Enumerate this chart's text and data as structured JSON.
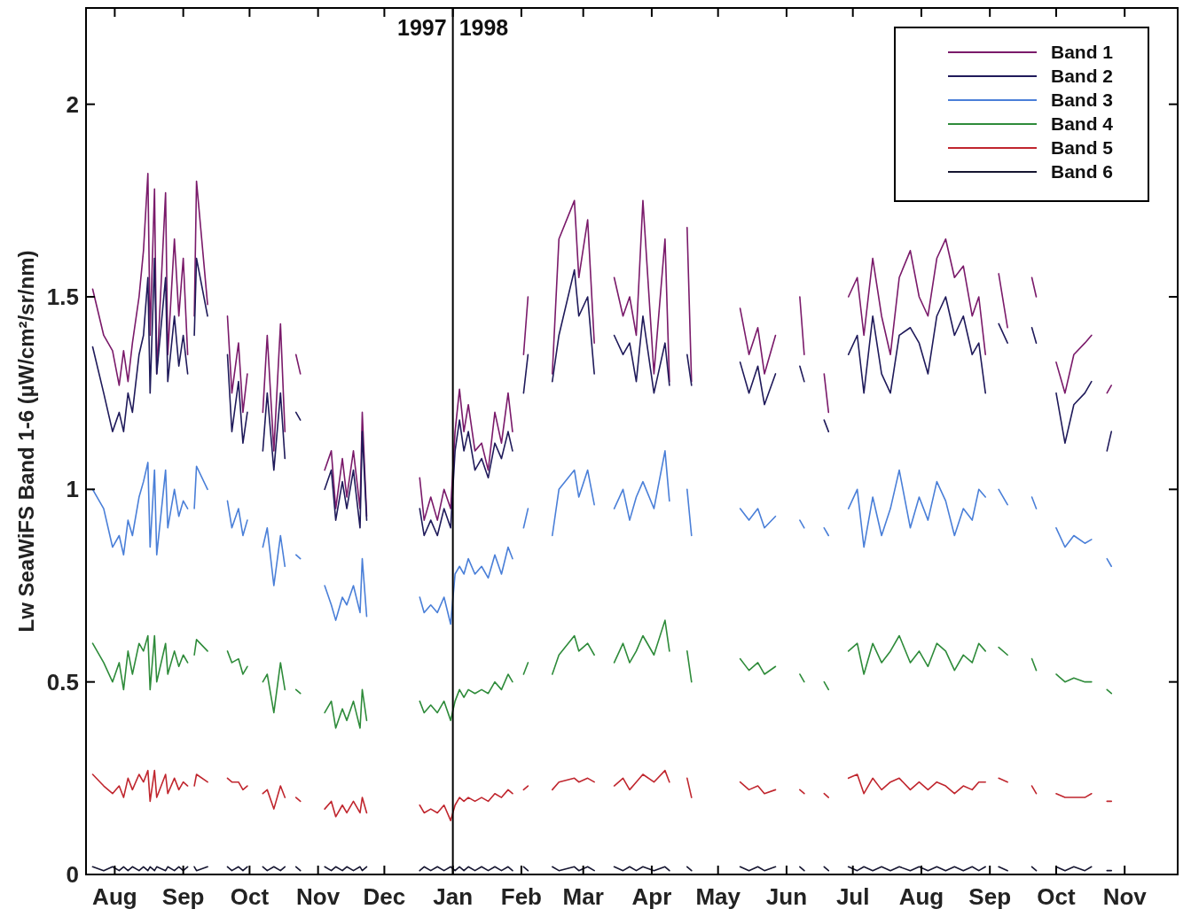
{
  "chart_data": {
    "type": "line",
    "ylabel": "Lw SeaWiFS Band 1-6 (µW/cm²/sr/nm)",
    "x": [
      "1997-07-22",
      "1997-07-27",
      "1997-07-31",
      "1997-08-03",
      "1997-08-05",
      "1997-08-07",
      "1997-08-09",
      "1997-08-12",
      "1997-08-14",
      "1997-08-16",
      "1997-08-17",
      "1997-08-19",
      "1997-08-20",
      "1997-08-24",
      "1997-08-25",
      "1997-08-28",
      "1997-08-30",
      "1997-09-01",
      "1997-09-03",
      "1997-09-05",
      "1997-09-06",
      "1997-09-07",
      "1997-09-12",
      "1997-09-16",
      "1997-09-21",
      "1997-09-23",
      "1997-09-26",
      "1997-09-28",
      "1997-09-30",
      "1997-10-03",
      "1997-10-07",
      "1997-10-09",
      "1997-10-12",
      "1997-10-15",
      "1997-10-17",
      "1997-10-20",
      "1997-10-22",
      "1997-10-24",
      "1997-10-28",
      "1997-11-04",
      "1997-11-07",
      "1997-11-09",
      "1997-11-12",
      "1997-11-14",
      "1997-11-17",
      "1997-11-20",
      "1997-11-21",
      "1997-11-23",
      "1997-12-05",
      "1997-12-17",
      "1997-12-19",
      "1997-12-22",
      "1997-12-25",
      "1997-12-28",
      "1997-12-31",
      "1998-01-02",
      "1998-01-04",
      "1998-01-06",
      "1998-01-08",
      "1998-01-11",
      "1998-01-14",
      "1998-01-17",
      "1998-01-20",
      "1998-01-23",
      "1998-01-26",
      "1998-01-28",
      "1998-01-30",
      "1998-02-02",
      "1998-02-04",
      "1998-02-10",
      "1998-02-15",
      "1998-02-18",
      "1998-02-25",
      "1998-02-27",
      "1998-03-03",
      "1998-03-06",
      "1998-03-10",
      "1998-03-15",
      "1998-03-19",
      "1998-03-22",
      "1998-03-25",
      "1998-03-28",
      "1998-04-02",
      "1998-04-07",
      "1998-04-09",
      "1998-04-13",
      "1998-04-17",
      "1998-04-19",
      "1998-05-01",
      "1998-05-11",
      "1998-05-15",
      "1998-05-19",
      "1998-05-22",
      "1998-05-27",
      "1998-06-02",
      "1998-06-07",
      "1998-06-09",
      "1998-06-13",
      "1998-06-18",
      "1998-06-20",
      "1998-06-25",
      "1998-06-29",
      "1998-07-03",
      "1998-07-06",
      "1998-07-10",
      "1998-07-14",
      "1998-07-18",
      "1998-07-22",
      "1998-07-27",
      "1998-07-31",
      "1998-08-04",
      "1998-08-08",
      "1998-08-12",
      "1998-08-16",
      "1998-08-20",
      "1998-08-24",
      "1998-08-27",
      "1998-08-30",
      "1998-09-02",
      "1998-09-05",
      "1998-09-09",
      "1998-09-14",
      "1998-09-20",
      "1998-09-22",
      "1998-09-26",
      "1998-10-01",
      "1998-10-05",
      "1998-10-09",
      "1998-10-14",
      "1998-10-17",
      "1998-10-20",
      "1998-10-24",
      "1998-10-26"
    ],
    "series": [
      {
        "name": "Band 1",
        "color": "#7a1a6a",
        "values": [
          1.52,
          1.4,
          1.36,
          1.27,
          1.36,
          1.28,
          1.38,
          1.5,
          1.62,
          1.82,
          1.4,
          1.78,
          1.3,
          1.77,
          1.35,
          1.65,
          1.45,
          1.6,
          1.35,
          null,
          1.45,
          1.8,
          1.48,
          null,
          1.45,
          1.25,
          1.38,
          1.2,
          1.3,
          null,
          1.2,
          1.4,
          1.1,
          1.43,
          1.15,
          null,
          1.35,
          1.3,
          null,
          1.05,
          1.1,
          0.95,
          1.08,
          0.98,
          1.1,
          0.95,
          1.2,
          0.93,
          null,
          1.03,
          0.92,
          0.98,
          0.92,
          1.0,
          0.95,
          1.15,
          1.26,
          1.15,
          1.22,
          1.1,
          1.12,
          1.05,
          1.2,
          1.12,
          1.25,
          1.15,
          null,
          1.35,
          1.5,
          null,
          1.3,
          1.65,
          1.75,
          1.55,
          1.7,
          1.38,
          null,
          1.55,
          1.45,
          1.5,
          1.4,
          1.75,
          1.3,
          1.65,
          1.28,
          null,
          1.68,
          1.28,
          null,
          1.47,
          1.35,
          1.42,
          1.3,
          1.4,
          null,
          1.5,
          1.35,
          null,
          1.3,
          1.2,
          null,
          1.5,
          1.55,
          1.4,
          1.6,
          1.45,
          1.35,
          1.55,
          1.62,
          1.5,
          1.45,
          1.6,
          1.65,
          1.55,
          1.58,
          1.45,
          1.5,
          1.35,
          null,
          1.56,
          1.42,
          null,
          1.55,
          1.5,
          null,
          1.33,
          1.25,
          1.35,
          1.38,
          1.4,
          null,
          1.25,
          1.27
        ]
      },
      {
        "name": "Band 2",
        "color": "#1f1a5a",
        "values": [
          1.37,
          1.25,
          1.15,
          1.2,
          1.15,
          1.25,
          1.2,
          1.35,
          1.4,
          1.55,
          1.25,
          1.6,
          1.3,
          1.55,
          1.28,
          1.45,
          1.32,
          1.4,
          1.3,
          null,
          1.4,
          1.6,
          1.45,
          null,
          1.35,
          1.15,
          1.28,
          1.12,
          1.2,
          null,
          1.1,
          1.25,
          1.05,
          1.25,
          1.08,
          null,
          1.2,
          1.18,
          null,
          1.0,
          1.05,
          0.92,
          1.02,
          0.95,
          1.05,
          0.9,
          1.15,
          0.92,
          null,
          0.95,
          0.88,
          0.92,
          0.88,
          0.95,
          0.9,
          1.1,
          1.18,
          1.1,
          1.15,
          1.05,
          1.08,
          1.03,
          1.12,
          1.08,
          1.15,
          1.1,
          null,
          1.25,
          1.35,
          null,
          1.28,
          1.4,
          1.57,
          1.45,
          1.5,
          1.3,
          null,
          1.4,
          1.35,
          1.38,
          1.28,
          1.45,
          1.25,
          1.38,
          1.27,
          null,
          1.35,
          1.27,
          null,
          1.33,
          1.25,
          1.32,
          1.22,
          1.3,
          null,
          1.32,
          1.28,
          null,
          1.18,
          1.15,
          null,
          1.35,
          1.4,
          1.25,
          1.45,
          1.3,
          1.25,
          1.4,
          1.42,
          1.38,
          1.3,
          1.45,
          1.5,
          1.4,
          1.45,
          1.35,
          1.38,
          1.25,
          null,
          1.43,
          1.38,
          null,
          1.42,
          1.38,
          null,
          1.25,
          1.12,
          1.22,
          1.25,
          1.28,
          null,
          1.1,
          1.15
        ]
      },
      {
        "name": "Band 3",
        "color": "#4a7fd8",
        "values": [
          1.0,
          0.95,
          0.85,
          0.88,
          0.83,
          0.92,
          0.88,
          0.98,
          1.02,
          1.07,
          0.85,
          1.05,
          0.83,
          1.05,
          0.9,
          1.0,
          0.93,
          0.97,
          0.95,
          null,
          0.95,
          1.06,
          1.0,
          null,
          0.97,
          0.9,
          0.95,
          0.88,
          0.92,
          null,
          0.85,
          0.9,
          0.75,
          0.88,
          0.8,
          null,
          0.83,
          0.82,
          null,
          0.75,
          0.7,
          0.66,
          0.72,
          0.7,
          0.75,
          0.68,
          0.82,
          0.67,
          null,
          0.72,
          0.68,
          0.7,
          0.68,
          0.72,
          0.65,
          0.78,
          0.8,
          0.78,
          0.82,
          0.78,
          0.8,
          0.77,
          0.83,
          0.78,
          0.85,
          0.82,
          null,
          0.9,
          0.95,
          null,
          0.88,
          1.0,
          1.05,
          0.98,
          1.05,
          0.96,
          null,
          0.95,
          1.0,
          0.92,
          0.98,
          1.02,
          0.95,
          1.1,
          0.97,
          null,
          1.0,
          0.88,
          null,
          0.95,
          0.92,
          0.95,
          0.9,
          0.93,
          null,
          0.92,
          0.9,
          null,
          0.9,
          0.88,
          null,
          0.95,
          1.0,
          0.85,
          0.98,
          0.88,
          0.95,
          1.05,
          0.9,
          0.98,
          0.92,
          1.02,
          0.97,
          0.88,
          0.95,
          0.92,
          1.0,
          0.98,
          null,
          1.0,
          0.96,
          null,
          0.98,
          0.95,
          null,
          0.9,
          0.85,
          0.88,
          0.86,
          0.87,
          null,
          0.82,
          0.8
        ]
      },
      {
        "name": "Band 4",
        "color": "#2e8b3a",
        "values": [
          0.6,
          0.55,
          0.5,
          0.55,
          0.48,
          0.58,
          0.52,
          0.6,
          0.58,
          0.62,
          0.48,
          0.62,
          0.5,
          0.6,
          0.52,
          0.58,
          0.54,
          0.57,
          0.55,
          null,
          0.57,
          0.61,
          0.58,
          null,
          0.58,
          0.55,
          0.56,
          0.52,
          0.54,
          null,
          0.5,
          0.52,
          0.42,
          0.55,
          0.48,
          null,
          0.48,
          0.47,
          null,
          0.42,
          0.45,
          0.38,
          0.43,
          0.4,
          0.45,
          0.38,
          0.48,
          0.4,
          null,
          0.45,
          0.42,
          0.44,
          0.42,
          0.45,
          0.4,
          0.45,
          0.48,
          0.46,
          0.48,
          0.47,
          0.48,
          0.47,
          0.5,
          0.48,
          0.52,
          0.5,
          null,
          0.52,
          0.55,
          null,
          0.52,
          0.57,
          0.62,
          0.58,
          0.6,
          0.57,
          null,
          0.55,
          0.6,
          0.55,
          0.58,
          0.62,
          0.57,
          0.66,
          0.58,
          null,
          0.58,
          0.5,
          null,
          0.56,
          0.53,
          0.55,
          0.52,
          0.54,
          null,
          0.52,
          0.5,
          null,
          0.5,
          0.48,
          null,
          0.58,
          0.6,
          0.52,
          0.6,
          0.55,
          0.58,
          0.62,
          0.55,
          0.58,
          0.54,
          0.6,
          0.58,
          0.53,
          0.57,
          0.55,
          0.6,
          0.58,
          null,
          0.59,
          0.57,
          null,
          0.56,
          0.53,
          null,
          0.52,
          0.5,
          0.51,
          0.5,
          0.5,
          null,
          0.48,
          0.47
        ]
      },
      {
        "name": "Band 5",
        "color": "#c0262e",
        "values": [
          0.26,
          0.23,
          0.21,
          0.23,
          0.2,
          0.25,
          0.22,
          0.26,
          0.24,
          0.27,
          0.19,
          0.27,
          0.2,
          0.26,
          0.21,
          0.25,
          0.22,
          0.24,
          0.23,
          null,
          0.23,
          0.26,
          0.24,
          null,
          0.25,
          0.24,
          0.24,
          0.22,
          0.23,
          null,
          0.21,
          0.22,
          0.17,
          0.23,
          0.2,
          null,
          0.2,
          0.19,
          null,
          0.17,
          0.19,
          0.15,
          0.18,
          0.16,
          0.19,
          0.16,
          0.2,
          0.16,
          null,
          0.18,
          0.16,
          0.17,
          0.16,
          0.18,
          0.14,
          0.18,
          0.2,
          0.19,
          0.2,
          0.19,
          0.2,
          0.19,
          0.21,
          0.2,
          0.22,
          0.21,
          null,
          0.22,
          0.23,
          null,
          0.22,
          0.24,
          0.25,
          0.24,
          0.25,
          0.24,
          null,
          0.23,
          0.25,
          0.22,
          0.24,
          0.26,
          0.24,
          0.27,
          0.24,
          null,
          0.25,
          0.2,
          null,
          0.24,
          0.22,
          0.23,
          0.21,
          0.22,
          null,
          0.22,
          0.21,
          null,
          0.21,
          0.2,
          null,
          0.25,
          0.26,
          0.21,
          0.25,
          0.22,
          0.24,
          0.25,
          0.22,
          0.24,
          0.22,
          0.24,
          0.23,
          0.21,
          0.23,
          0.22,
          0.24,
          0.24,
          null,
          0.25,
          0.24,
          null,
          0.23,
          0.21,
          null,
          0.21,
          0.2,
          0.2,
          0.2,
          0.21,
          null,
          0.19,
          0.19
        ]
      },
      {
        "name": "Band 6",
        "color": "#151530",
        "values": [
          0.02,
          0.01,
          0.02,
          0.01,
          0.02,
          0.01,
          0.02,
          0.01,
          0.02,
          0.01,
          0.02,
          0.01,
          0.02,
          0.01,
          0.02,
          0.01,
          0.02,
          0.01,
          0.02,
          null,
          0.02,
          0.01,
          0.02,
          null,
          0.02,
          0.01,
          0.02,
          0.01,
          0.02,
          null,
          0.02,
          0.01,
          0.02,
          0.01,
          0.02,
          null,
          0.02,
          0.01,
          null,
          0.02,
          0.01,
          0.02,
          0.01,
          0.02,
          0.01,
          0.02,
          0.01,
          0.02,
          null,
          0.01,
          0.02,
          0.01,
          0.02,
          0.01,
          0.02,
          0.01,
          0.02,
          0.01,
          0.02,
          0.01,
          0.02,
          0.01,
          0.02,
          0.01,
          0.02,
          0.01,
          null,
          0.02,
          0.01,
          null,
          0.02,
          0.01,
          0.02,
          0.01,
          0.02,
          0.01,
          null,
          0.02,
          0.01,
          0.02,
          0.01,
          0.02,
          0.01,
          0.02,
          0.01,
          null,
          0.02,
          0.01,
          null,
          0.02,
          0.01,
          0.02,
          0.01,
          0.02,
          null,
          0.02,
          0.01,
          null,
          0.02,
          0.01,
          null,
          0.02,
          0.01,
          0.02,
          0.01,
          0.02,
          0.01,
          0.02,
          0.01,
          0.02,
          0.01,
          0.02,
          0.01,
          0.02,
          0.01,
          0.02,
          0.01,
          0.02,
          null,
          0.02,
          0.01,
          null,
          0.02,
          0.01,
          null,
          0.02,
          0.01,
          0.02,
          0.01,
          0.02,
          null,
          0.01,
          0.01
        ]
      }
    ],
    "xlim": [
      "1997-07-19",
      "1998-11-25"
    ],
    "xticks": [
      {
        "value": "1997-08-01",
        "label": "Aug"
      },
      {
        "value": "1997-09-01",
        "label": "Sep"
      },
      {
        "value": "1997-10-01",
        "label": "Oct"
      },
      {
        "value": "1997-11-01",
        "label": "Nov"
      },
      {
        "value": "1997-12-01",
        "label": "Dec"
      },
      {
        "value": "1998-01-01",
        "label": "Jan"
      },
      {
        "value": "1998-02-01",
        "label": "Feb"
      },
      {
        "value": "1998-03-01",
        "label": "Mar"
      },
      {
        "value": "1998-04-01",
        "label": "Apr"
      },
      {
        "value": "1998-05-01",
        "label": "May"
      },
      {
        "value": "1998-06-01",
        "label": "Jun"
      },
      {
        "value": "1998-07-01",
        "label": "Jul"
      },
      {
        "value": "1998-08-01",
        "label": "Aug"
      },
      {
        "value": "1998-09-01",
        "label": "Sep"
      },
      {
        "value": "1998-10-01",
        "label": "Oct"
      },
      {
        "value": "1998-11-01",
        "label": "Nov"
      }
    ],
    "ylim": [
      0,
      2.25
    ],
    "yticks": [
      0,
      0.5,
      1,
      1.5,
      2
    ],
    "ref_lines": [
      {
        "axis": "x",
        "value": "1998-01-01",
        "color": "#000000"
      }
    ],
    "annotations": [
      {
        "text": "1997",
        "x": "1998-01-01",
        "y": 2.2
      },
      {
        "text": "1998",
        "x": "1998-01-01",
        "y": 2.2
      }
    ],
    "grid": false,
    "legend": "top right",
    "marker": "none",
    "line_style": "solid"
  }
}
